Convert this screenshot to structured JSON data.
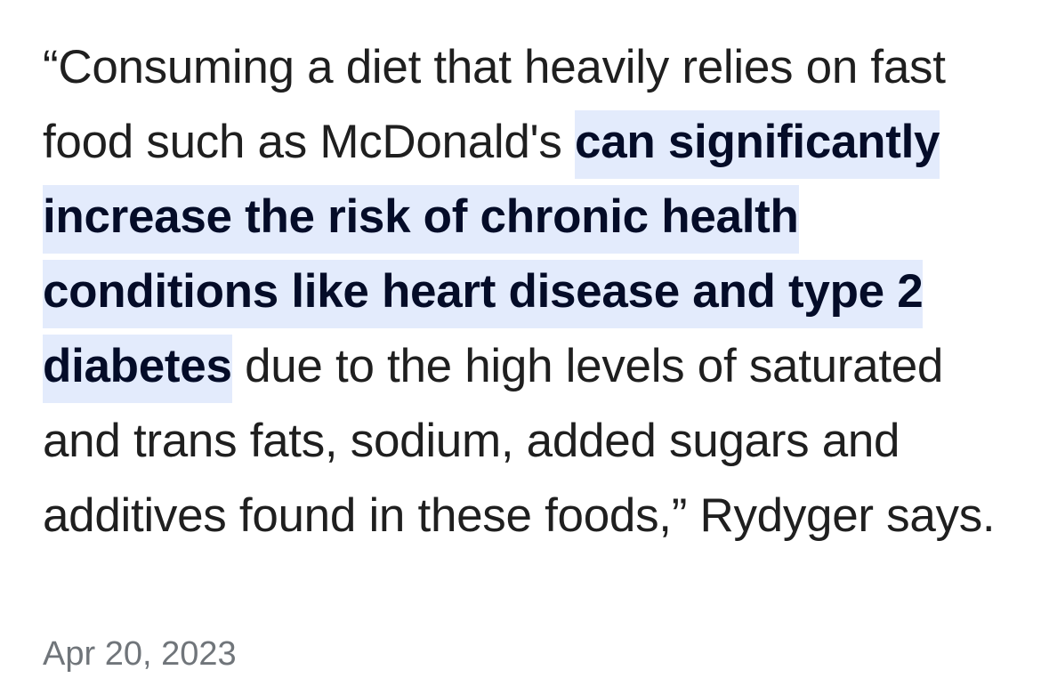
{
  "snippet": {
    "text_before": "“Consuming a diet that heavily relies on fast food such as McDonald's ",
    "highlight": "can significantly increase the risk of chronic health conditions like heart disease and type 2 diabetes",
    "text_after": " due to the high levels of saturated and trans fats, sodium, added sugars and additives found in these foods,” Rydyger says."
  },
  "date": "Apr 20, 2023"
}
